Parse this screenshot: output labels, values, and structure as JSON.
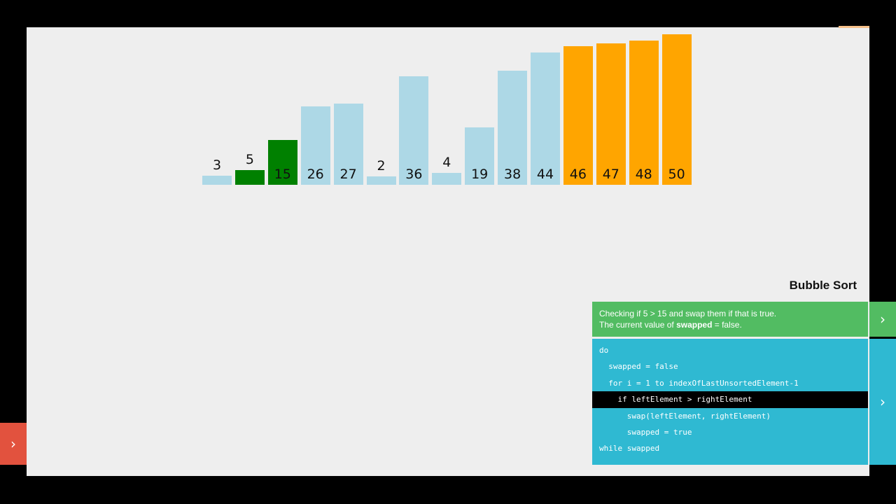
{
  "chart_data": {
    "type": "bar",
    "values": [
      3,
      5,
      15,
      26,
      27,
      2,
      36,
      4,
      19,
      38,
      44,
      46,
      47,
      48,
      50
    ],
    "states": [
      "default",
      "compare",
      "compare",
      "default",
      "default",
      "default",
      "default",
      "default",
      "default",
      "default",
      "default",
      "sorted",
      "sorted",
      "sorted",
      "sorted"
    ],
    "ylim": [
      0,
      50
    ]
  },
  "colors": {
    "default": "#add8e6",
    "compare": "#008000",
    "sorted": "#ffa500",
    "status_bg": "#52bc62",
    "code_bg": "#2fb9d2",
    "left_toggle": "#e2523e"
  },
  "panel": {
    "title": "Bubble Sort",
    "status_line1": "Checking if 5 > 15 and swap them if that is true.",
    "status_line2_prefix": "The current value of ",
    "status_line2_bold": "swapped",
    "status_line2_suffix": " = false.",
    "code_lines": [
      "do",
      "  swapped = false",
      "  for i = 1 to indexOfLastUnsortedElement-1",
      "    if leftElement > rightElement",
      "      swap(leftElement, rightElement)",
      "      swapped = true",
      "while swapped"
    ],
    "active_line": 3
  },
  "icons": {
    "left_toggle": "chevron-right-icon",
    "status_toggle": "chevron-right-icon",
    "code_toggle": "chevron-right-icon"
  },
  "glyphs": {
    "chevron": "›"
  }
}
